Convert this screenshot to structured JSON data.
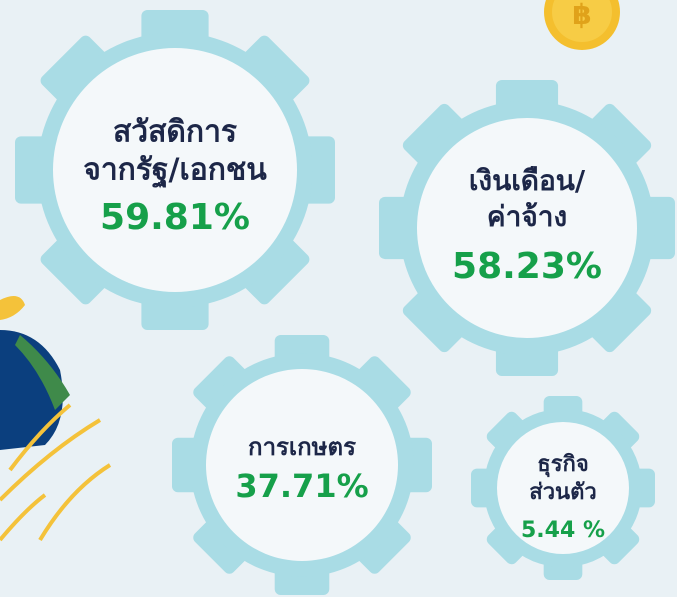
{
  "items": [
    {
      "label": [
        "สวัสดิการ",
        "จากรัฐ/เอกชน"
      ],
      "value": "59.81%"
    },
    {
      "label": [
        "เงินเดือน/",
        "ค่าจ้าง"
      ],
      "value": "58.23%"
    },
    {
      "label": [
        "การเกษตร"
      ],
      "value": "37.71%"
    },
    {
      "label": [
        "ธุรกิจ",
        "ส่วนตัว"
      ],
      "value": "5.44 %"
    }
  ]
}
